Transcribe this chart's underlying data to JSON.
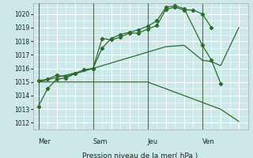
{
  "bg_color": "#cce8e8",
  "grid_major_color": "#ffffff",
  "grid_minor_color": "#dff0f0",
  "line_color": "#2d6a2d",
  "ylabel": "Pression niveau de la mer( hPa )",
  "ylim": [
    1011.5,
    1020.8
  ],
  "yticks": [
    1012,
    1013,
    1014,
    1015,
    1016,
    1017,
    1018,
    1019,
    1020
  ],
  "day_labels": [
    "Mer",
    "Sam",
    "Jeu",
    "Ven"
  ],
  "day_positions": [
    0,
    3,
    6,
    9
  ],
  "xlim": [
    -0.3,
    11.5
  ],
  "series": [
    {
      "x": [
        0.0,
        0.5,
        1.0,
        1.5,
        2.0,
        2.5,
        3.0,
        3.5,
        4.0,
        4.5,
        5.0,
        5.5,
        6.0,
        6.5,
        7.0,
        7.5,
        8.0,
        8.5,
        9.0,
        9.5
      ],
      "y": [
        1013.2,
        1014.5,
        1015.2,
        1015.3,
        1015.6,
        1015.9,
        1016.0,
        1018.2,
        1018.1,
        1018.3,
        1018.6,
        1018.6,
        1018.9,
        1019.15,
        1020.35,
        1020.5,
        1020.3,
        1020.3,
        1020.0,
        1019.0
      ],
      "has_markers": true
    },
    {
      "x": [
        0.0,
        0.5,
        1.0,
        1.5,
        2.0,
        3.0,
        3.5,
        4.0,
        4.5,
        5.0,
        5.5,
        6.0,
        6.5,
        7.0,
        7.5,
        8.0,
        9.0,
        9.5,
        10.0
      ],
      "y": [
        1015.1,
        1015.2,
        1015.5,
        1015.4,
        1015.6,
        1016.0,
        1017.5,
        1018.2,
        1018.5,
        1018.65,
        1018.85,
        1019.1,
        1019.5,
        1020.5,
        1020.6,
        1020.4,
        1017.7,
        1016.6,
        1014.9
      ],
      "has_markers": true
    },
    {
      "x": [
        0.0,
        3.0,
        6.0,
        7.0,
        8.0,
        9.0,
        9.5,
        10.0,
        11.0
      ],
      "y": [
        1015.0,
        1016.0,
        1017.2,
        1017.6,
        1017.7,
        1016.6,
        1016.5,
        1016.2,
        1019.0
      ],
      "has_markers": false
    },
    {
      "x": [
        0.0,
        3.0,
        6.0,
        7.0,
        8.0,
        9.0,
        10.0,
        11.0
      ],
      "y": [
        1015.0,
        1015.0,
        1015.0,
        1014.5,
        1014.0,
        1013.5,
        1013.0,
        1012.1
      ],
      "has_markers": false
    }
  ],
  "vlines": [
    0,
    3,
    6,
    9
  ],
  "figsize": [
    3.2,
    2.0
  ],
  "dpi": 100
}
